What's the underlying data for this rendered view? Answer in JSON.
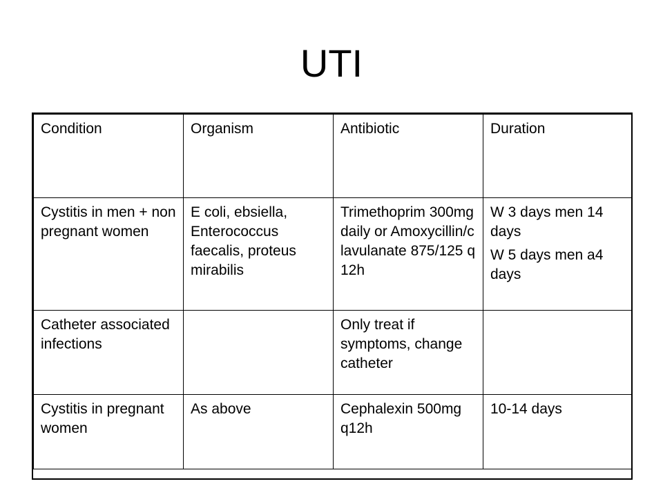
{
  "title": "UTI",
  "table": {
    "headers": [
      "Condition",
      "Organism",
      "Antibiotic",
      "Duration"
    ],
    "rows": [
      {
        "condition": "Cystitis in men + non pregnant women",
        "organism": "E coli, ebsiella, Enterococcus faecalis, proteus mirabilis",
        "antibiotic": "Trimethoprim 300mg daily or Amoxycillin/clavulanate 875/125 q12h",
        "duration_lines": [
          "W 3 days men 14 days",
          "W 5 days men a4 days"
        ]
      },
      {
        "condition": "Catheter associated infections",
        "organism": "",
        "antibiotic": "Only treat if symptoms, change catheter",
        "duration_lines": []
      },
      {
        "condition": "Cystitis in pregnant women",
        "organism": "As above",
        "antibiotic": "Cephalexin 500mg q12h",
        "duration_lines": [
          "10-14 days"
        ]
      }
    ]
  }
}
